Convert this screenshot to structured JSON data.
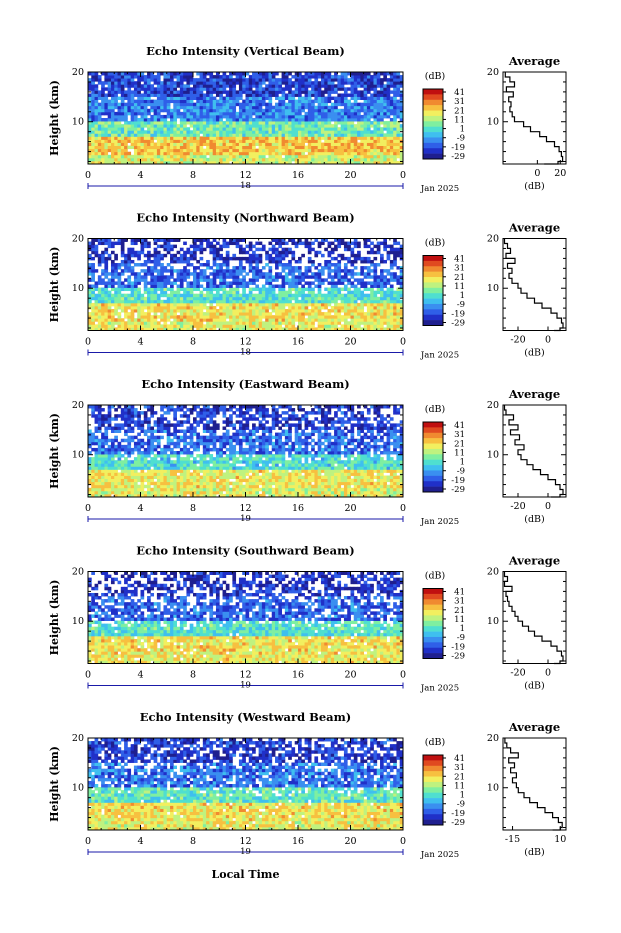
{
  "colorbar": {
    "unit": "(dB)",
    "levels": [
      "41",
      "31",
      "21",
      "11",
      "1",
      "-9",
      "-19",
      "-29"
    ],
    "colors": [
      "#1f1f8f",
      "#2030c8",
      "#2f5fe8",
      "#3a8ff0",
      "#3fbfef",
      "#4fdfd0",
      "#7fefa0",
      "#bff27f",
      "#f2ef5f",
      "#f7c040",
      "#f08a30",
      "#e04a20",
      "#c01010"
    ]
  },
  "shared": {
    "date_text": "Jan 2025",
    "xlabel": "Local Time",
    "profile_title": "Average",
    "profile_xlabel": "(dB)"
  },
  "chart_data": [
    {
      "type": "heatmap",
      "title": "Echo Intensity (Vertical Beam)",
      "ylabel": "Height (km)",
      "x_ticks": [
        "0",
        "4",
        "8",
        "12",
        "16",
        "20",
        "0"
      ],
      "day_label": "18",
      "xlim": [
        0,
        24
      ],
      "ylim": [
        1.5,
        20
      ],
      "y_ticks": [
        "20",
        "10"
      ],
      "color_range_db": [
        -29,
        41
      ],
      "layers": [
        {
          "from_km": 1.5,
          "to_km": 3.5,
          "db": 14
        },
        {
          "from_km": 3.5,
          "to_km": 7.0,
          "db": 21
        },
        {
          "from_km": 7.0,
          "to_km": 10.0,
          "db": 4
        },
        {
          "from_km": 10.0,
          "to_km": 15.0,
          "db": -12
        },
        {
          "from_km": 15.0,
          "to_km": 20.0,
          "db": -19
        }
      ],
      "gaps": 0.1,
      "profile": {
        "x_ticks": [
          "0",
          "20"
        ],
        "xlim": [
          -30,
          25
        ],
        "height_km": [
          1.5,
          2,
          3,
          4,
          5,
          6,
          7,
          8,
          9,
          10,
          11,
          12,
          13,
          14,
          15,
          16,
          17,
          18,
          19,
          20
        ],
        "avg_db": [
          6,
          18,
          22,
          21,
          19,
          15,
          8,
          2,
          -6,
          -12,
          -20,
          -22,
          -24,
          -23,
          -25,
          -21,
          -27,
          -20,
          -24,
          -28
        ]
      }
    },
    {
      "type": "heatmap",
      "title": "Echo Intensity (Northward Beam)",
      "ylabel": "Height (km)",
      "x_ticks": [
        "0",
        "4",
        "8",
        "12",
        "16",
        "20",
        "0"
      ],
      "day_label": "18",
      "xlim": [
        0,
        24
      ],
      "ylim": [
        1.5,
        20
      ],
      "y_ticks": [
        "20",
        "10"
      ],
      "color_range_db": [
        -29,
        41
      ],
      "layers": [
        {
          "from_km": 1.5,
          "to_km": 3.5,
          "db": 16
        },
        {
          "from_km": 3.5,
          "to_km": 7.0,
          "db": 18
        },
        {
          "from_km": 7.0,
          "to_km": 10.0,
          "db": 1
        },
        {
          "from_km": 10.0,
          "to_km": 15.0,
          "db": -15
        },
        {
          "from_km": 15.0,
          "to_km": 20.0,
          "db": -21
        }
      ],
      "gaps": 0.35,
      "profile": {
        "x_ticks": [
          "-20",
          "0"
        ],
        "xlim": [
          -30,
          12
        ],
        "height_km": [
          1.5,
          2,
          3,
          4,
          5,
          6,
          7,
          8,
          9,
          10,
          11,
          12,
          13,
          14,
          15,
          16,
          17,
          18,
          19,
          20
        ],
        "avg_db": [
          4,
          8,
          10,
          9,
          6,
          2,
          -4,
          -9,
          -14,
          -18,
          -20,
          -24,
          -26,
          -24,
          -27,
          -22,
          -28,
          -25,
          -27,
          -29
        ]
      }
    },
    {
      "type": "heatmap",
      "title": "Echo Intensity (Eastward Beam)",
      "ylabel": "Height (km)",
      "x_ticks": [
        "0",
        "4",
        "8",
        "12",
        "16",
        "20",
        "0"
      ],
      "day_label": "19",
      "xlim": [
        0,
        24
      ],
      "ylim": [
        1.5,
        20
      ],
      "y_ticks": [
        "20",
        "10"
      ],
      "color_range_db": [
        -29,
        41
      ],
      "layers": [
        {
          "from_km": 1.5,
          "to_km": 3.5,
          "db": 15
        },
        {
          "from_km": 3.5,
          "to_km": 7.0,
          "db": 17
        },
        {
          "from_km": 7.0,
          "to_km": 10.0,
          "db": 0
        },
        {
          "from_km": 10.0,
          "to_km": 15.0,
          "db": -14
        },
        {
          "from_km": 15.0,
          "to_km": 20.0,
          "db": -20
        }
      ],
      "gaps": 0.3,
      "profile": {
        "x_ticks": [
          "-20",
          "0"
        ],
        "xlim": [
          -30,
          12
        ],
        "height_km": [
          1.5,
          2,
          3,
          4,
          5,
          6,
          7,
          8,
          9,
          10,
          11,
          12,
          13,
          14,
          15,
          16,
          17,
          18,
          19,
          20
        ],
        "avg_db": [
          2,
          8,
          10,
          8,
          5,
          0,
          -5,
          -10,
          -14,
          -18,
          -20,
          -16,
          -22,
          -19,
          -25,
          -20,
          -26,
          -23,
          -28,
          -29
        ]
      }
    },
    {
      "type": "heatmap",
      "title": "Echo Intensity (Southward Beam)",
      "ylabel": "Height (km)",
      "x_ticks": [
        "0",
        "4",
        "8",
        "12",
        "16",
        "20",
        "0"
      ],
      "day_label": "19",
      "xlim": [
        0,
        24
      ],
      "ylim": [
        1.5,
        20
      ],
      "y_ticks": [
        "20",
        "10"
      ],
      "color_range_db": [
        -29,
        41
      ],
      "layers": [
        {
          "from_km": 1.5,
          "to_km": 3.5,
          "db": 17
        },
        {
          "from_km": 3.5,
          "to_km": 7.0,
          "db": 18
        },
        {
          "from_km": 7.0,
          "to_km": 10.0,
          "db": 1
        },
        {
          "from_km": 10.0,
          "to_km": 15.0,
          "db": -15
        },
        {
          "from_km": 15.0,
          "to_km": 20.0,
          "db": -21
        }
      ],
      "gaps": 0.35,
      "profile": {
        "x_ticks": [
          "-20",
          "0"
        ],
        "xlim": [
          -30,
          12
        ],
        "height_km": [
          1.5,
          2,
          3,
          4,
          5,
          6,
          7,
          8,
          9,
          10,
          11,
          12,
          13,
          14,
          15,
          16,
          17,
          18,
          19,
          20
        ],
        "avg_db": [
          4,
          8,
          10,
          9,
          6,
          2,
          -4,
          -9,
          -13,
          -17,
          -20,
          -22,
          -24,
          -26,
          -27,
          -28,
          -24,
          -29,
          -27,
          -29
        ]
      }
    },
    {
      "type": "heatmap",
      "title": "Echo Intensity (Westward Beam)",
      "ylabel": "Height (km)",
      "x_ticks": [
        "0",
        "4",
        "8",
        "12",
        "16",
        "20",
        "0"
      ],
      "day_label": "19",
      "xlim": [
        0,
        24
      ],
      "ylim": [
        1.5,
        20
      ],
      "y_ticks": [
        "20",
        "10"
      ],
      "color_range_db": [
        -29,
        41
      ],
      "layers": [
        {
          "from_km": 1.5,
          "to_km": 3.5,
          "db": 16
        },
        {
          "from_km": 3.5,
          "to_km": 7.0,
          "db": 18
        },
        {
          "from_km": 7.0,
          "to_km": 10.0,
          "db": 2
        },
        {
          "from_km": 10.0,
          "to_km": 15.0,
          "db": -13
        },
        {
          "from_km": 15.0,
          "to_km": 20.0,
          "db": -20
        }
      ],
      "gaps": 0.25,
      "profile": {
        "x_ticks": [
          "-15",
          "10"
        ],
        "xlim": [
          -20,
          13
        ],
        "height_km": [
          1.5,
          2,
          3,
          4,
          5,
          6,
          7,
          8,
          9,
          10,
          11,
          12,
          13,
          14,
          15,
          16,
          17,
          18,
          19,
          20
        ],
        "avg_db": [
          6,
          10,
          11,
          9,
          6,
          2,
          -2,
          -6,
          -9,
          -12,
          -13,
          -15,
          -13,
          -16,
          -14,
          -17,
          -12,
          -16,
          -18,
          -19
        ]
      }
    }
  ]
}
